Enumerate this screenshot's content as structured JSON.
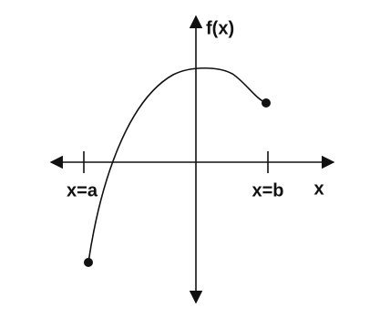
{
  "axes": {
    "y_label": "f(x)",
    "x_label": "x"
  },
  "markers": {
    "left": "x=a",
    "right": "x=b"
  }
}
